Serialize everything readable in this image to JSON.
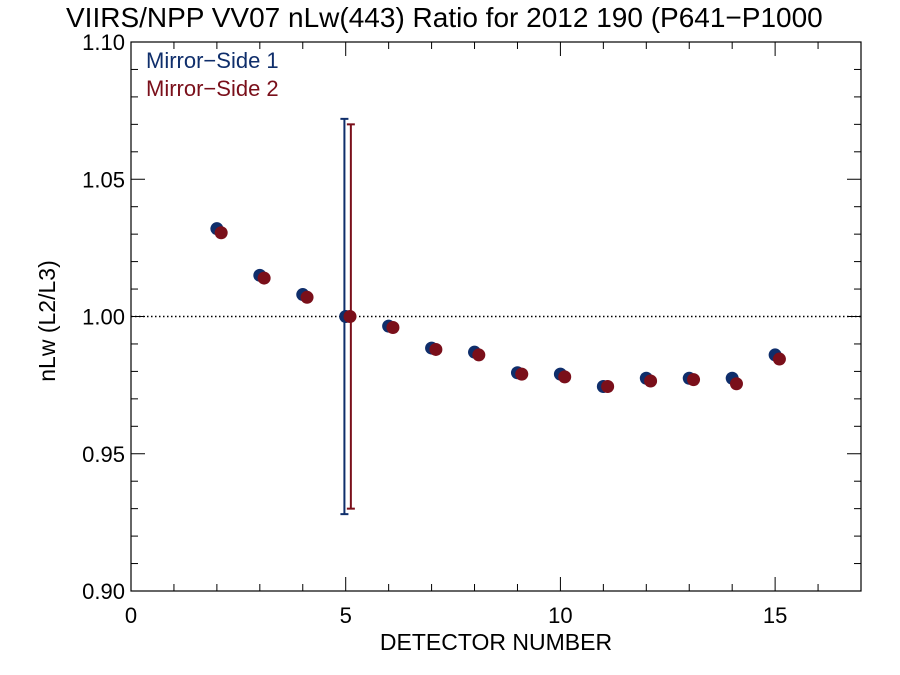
{
  "chart_data": {
    "type": "scatter",
    "title": "VIIRS/NPP VV07 nLw(443) Ratio for 2012 190 (P641−P1000",
    "xlabel": "DETECTOR NUMBER",
    "ylabel": "nLw (L2/L3)",
    "xlim": [
      0,
      17
    ],
    "ylim": [
      0.9,
      1.1
    ],
    "x_ticks": [
      "0",
      "5",
      "10",
      "15"
    ],
    "y_ticks": [
      "0.90",
      "0.95",
      "1.00",
      "1.05",
      "1.10"
    ],
    "reference_line": 1.0,
    "grid": false,
    "legend_position": "top-left",
    "series": [
      {
        "name": "Mirror−Side 1",
        "color": "#0f2e6b",
        "x": [
          2,
          3,
          4,
          5,
          6,
          7,
          8,
          9,
          10,
          11,
          12,
          13,
          14,
          15
        ],
        "y": [
          1.032,
          1.015,
          1.008,
          1.0,
          0.9965,
          0.9885,
          0.987,
          0.9795,
          0.979,
          0.9745,
          0.9775,
          0.9775,
          0.9775,
          0.986
        ],
        "error_bar": {
          "x": 5,
          "low": 0.928,
          "high": 1.072
        }
      },
      {
        "name": "Mirror−Side 2",
        "color": "#7a0f1a",
        "x": [
          2,
          3,
          4,
          5,
          6,
          7,
          8,
          9,
          10,
          11,
          12,
          13,
          14,
          15
        ],
        "y": [
          1.0305,
          1.014,
          1.007,
          1.0,
          0.996,
          0.988,
          0.986,
          0.979,
          0.978,
          0.9745,
          0.9765,
          0.977,
          0.9755,
          0.9845
        ],
        "error_bar": {
          "x": 5,
          "low": 0.93,
          "high": 1.07
        }
      }
    ]
  }
}
